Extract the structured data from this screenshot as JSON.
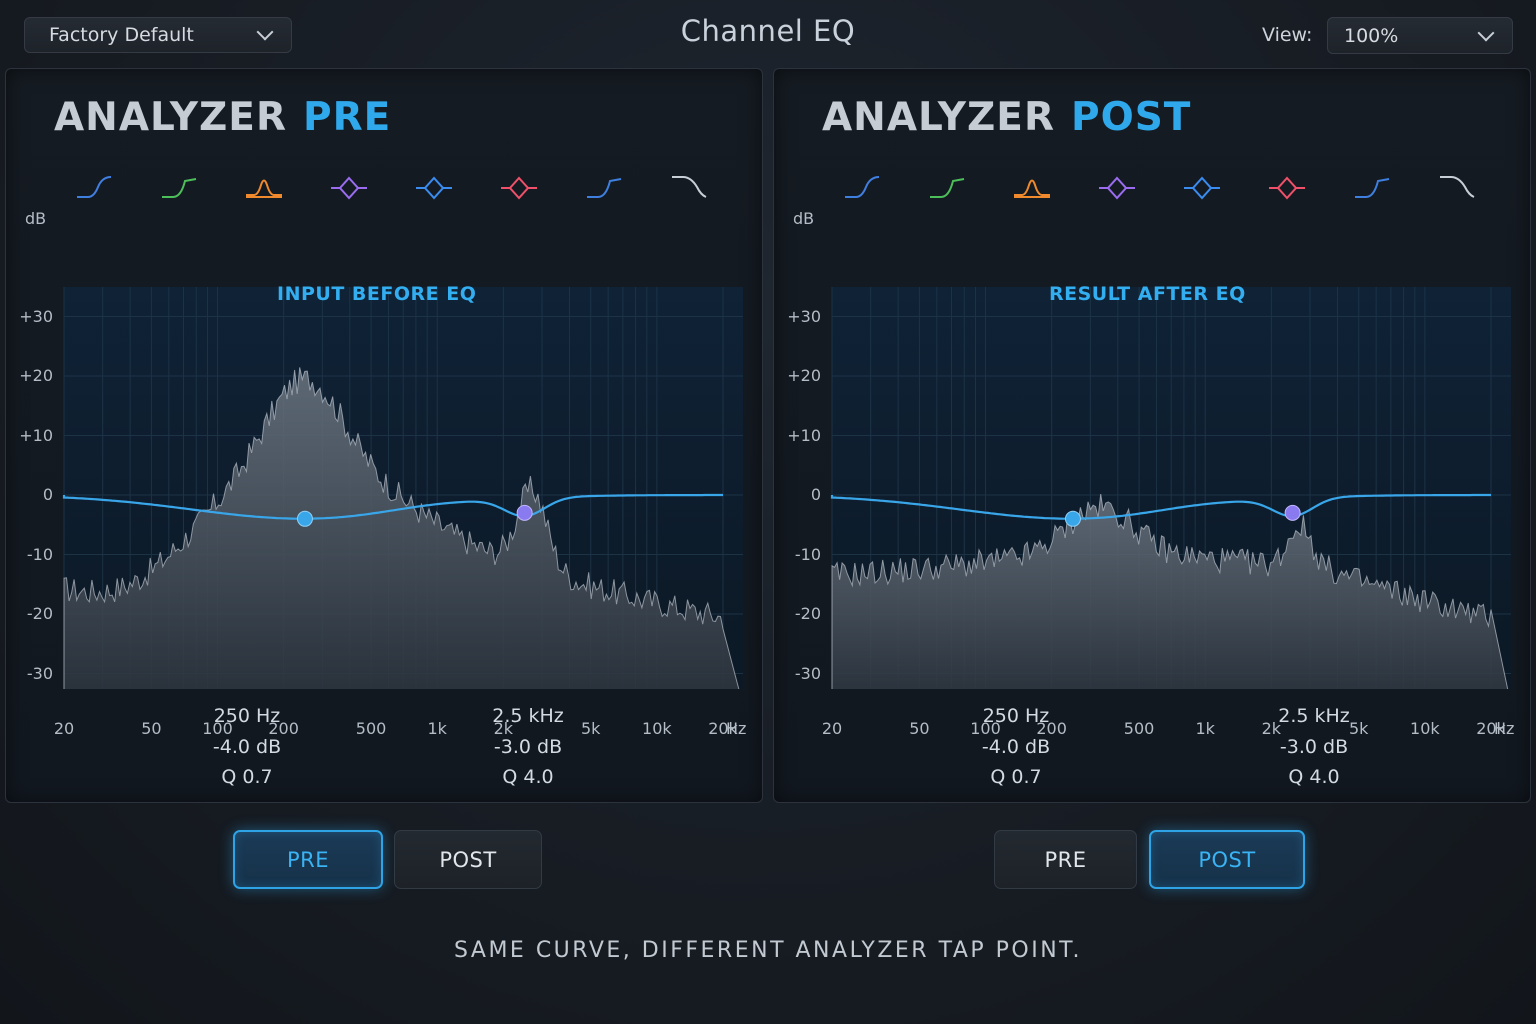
{
  "header": {
    "preset_value": "Factory Default",
    "title": "Channel EQ",
    "view_label": "View:",
    "view_value": "100%"
  },
  "colors": {
    "accent": "#2fa9ec",
    "band_1": "#3f7fe0",
    "band_2": "#4cbf5a",
    "band_3": "#f08a2c",
    "band_4": "#9b6cf0",
    "band_5": "#3a8cf0",
    "band_6": "#f0506a",
    "band_7": "#3f7fe0",
    "band_8": "#c8ced6"
  },
  "band_icons": [
    "low-cut-icon",
    "low-shelf-icon",
    "bell-icon",
    "bell-diamond-icon",
    "bell-diamond-icon",
    "bell-diamond-icon",
    "high-shelf-icon",
    "high-cut-icon"
  ],
  "panels": [
    {
      "title_main": "ANALYZER",
      "title_mode": "PRE",
      "caption": "INPUT BEFORE EQ",
      "db_axis_label": "dB",
      "hz_axis_label": "Hz",
      "db_ticks": [
        "+30",
        "+20",
        "+10",
        "0",
        "-10",
        "-20",
        "-30"
      ],
      "hz_ticks": [
        "20",
        "50",
        "100",
        "200",
        "500",
        "1k",
        "2k",
        "5k",
        "10k",
        "20k"
      ],
      "bands": [
        {
          "freq": "250 Hz",
          "gain": "-4.0 dB",
          "q": "Q 0.7"
        },
        {
          "freq": "2.5 kHz",
          "gain": "-3.0 dB",
          "q": "Q 4.0"
        }
      ]
    },
    {
      "title_main": "ANALYZER",
      "title_mode": "POST",
      "caption": "RESULT AFTER EQ",
      "db_axis_label": "dB",
      "hz_axis_label": "Hz",
      "db_ticks": [
        "+30",
        "+20",
        "+10",
        "0",
        "-10",
        "-20",
        "-30"
      ],
      "hz_ticks": [
        "20",
        "50",
        "100",
        "200",
        "500",
        "1k",
        "2k",
        "5k",
        "10k",
        "20k"
      ],
      "bands": [
        {
          "freq": "250 Hz",
          "gain": "-4.0 dB",
          "q": "Q 0.7"
        },
        {
          "freq": "2.5 kHz",
          "gain": "-3.0 dB",
          "q": "Q 4.0"
        }
      ]
    }
  ],
  "tap_buttons": {
    "left": [
      {
        "label": "PRE",
        "active": true
      },
      {
        "label": "POST",
        "active": false
      }
    ],
    "right": [
      {
        "label": "PRE",
        "active": false
      },
      {
        "label": "POST",
        "active": true
      }
    ]
  },
  "footer_note": "SAME CURVE, DIFFERENT ANALYZER TAP POINT."
}
